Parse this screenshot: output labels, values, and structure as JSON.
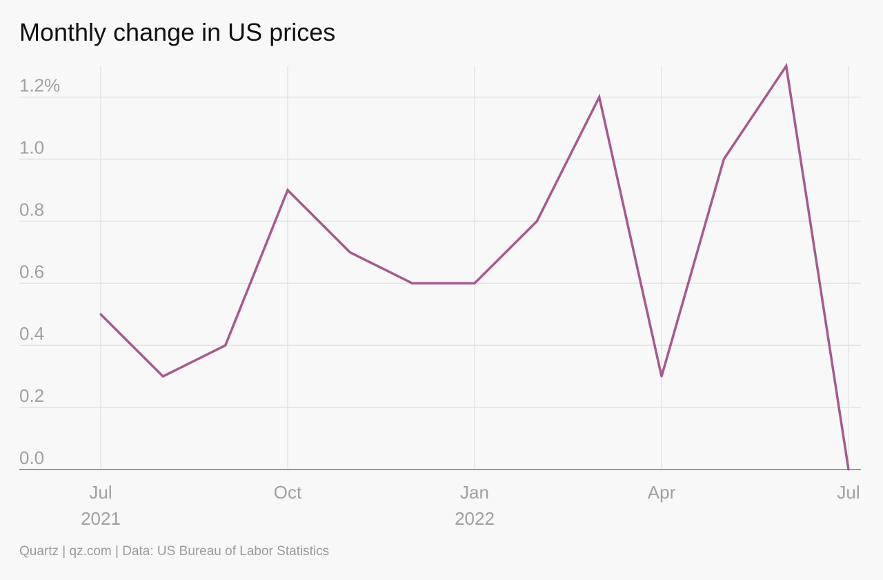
{
  "colors": {
    "background": "#f8f8f8",
    "line": "#a65a8c",
    "grid": "#e4e4e4",
    "baseline": "#9a9a9a",
    "tick_text": "#a0a0a0",
    "title_text": "#111111"
  },
  "chart_data": {
    "type": "line",
    "title": "Monthly change in US prices",
    "source": "Quartz | qz.com | Data: US Bureau of Labor Statistics",
    "xlabel": "",
    "ylabel": "",
    "grid": true,
    "ylim": [
      0,
      1.3
    ],
    "y_ticks": [
      {
        "value": 0.0,
        "label": "0.0"
      },
      {
        "value": 0.2,
        "label": "0.2"
      },
      {
        "value": 0.4,
        "label": "0.4"
      },
      {
        "value": 0.6,
        "label": "0.6"
      },
      {
        "value": 0.8,
        "label": "0.8"
      },
      {
        "value": 1.0,
        "label": "1.0"
      },
      {
        "value": 1.2,
        "label": "1.2%"
      }
    ],
    "x_ticks": [
      {
        "date": "2021-07",
        "label": "Jul",
        "sublabel": "2021"
      },
      {
        "date": "2021-10",
        "label": "Oct",
        "sublabel": ""
      },
      {
        "date": "2022-01",
        "label": "Jan",
        "sublabel": "2022"
      },
      {
        "date": "2022-04",
        "label": "Apr",
        "sublabel": ""
      },
      {
        "date": "2022-07",
        "label": "Jul",
        "sublabel": ""
      }
    ],
    "x": [
      "2021-07",
      "2021-08",
      "2021-09",
      "2021-10",
      "2021-11",
      "2021-12",
      "2022-01",
      "2022-02",
      "2022-03",
      "2022-04",
      "2022-05",
      "2022-06",
      "2022-07"
    ],
    "series": [
      {
        "values": [
          0.5,
          0.3,
          0.4,
          0.9,
          0.7,
          0.6,
          0.6,
          0.8,
          1.2,
          0.3,
          1.0,
          1.3,
          0.0
        ]
      }
    ]
  }
}
